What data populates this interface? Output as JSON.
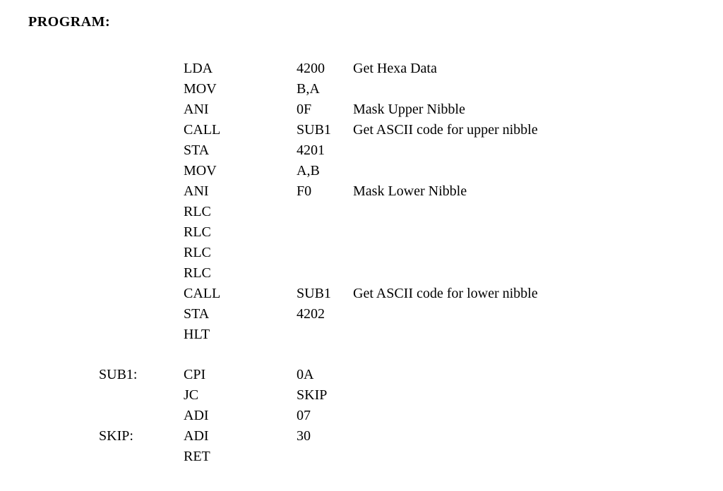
{
  "heading": "PROGRAM:",
  "text_color": "#000000",
  "background_color": "#ffffff",
  "font_family": "Garamond, Georgia, 'Times New Roman', serif",
  "heading_fontsize": 20,
  "body_fontsize": 20,
  "line_height": 1.45,
  "columns": {
    "label_width": 220,
    "opcode_width": 160,
    "operand_width": 80
  },
  "rows": [
    {
      "label": "",
      "opcode": "LDA",
      "operand": "4200",
      "comment": "Get Hexa Data"
    },
    {
      "label": "",
      "opcode": "MOV",
      "operand": "B,A",
      "comment": ""
    },
    {
      "label": "",
      "opcode": "ANI",
      "operand": "0F",
      "comment": "Mask Upper Nibble"
    },
    {
      "label": "",
      "opcode": "CALL",
      "operand": "SUB1",
      "comment": "Get ASCII code for upper nibble"
    },
    {
      "label": "",
      "opcode": "STA",
      "operand": "4201",
      "comment": ""
    },
    {
      "label": "",
      "opcode": "MOV",
      "operand": "A,B",
      "comment": ""
    },
    {
      "label": "",
      "opcode": "ANI",
      "operand": "F0",
      "comment": "Mask Lower Nibble"
    },
    {
      "label": "",
      "opcode": "RLC",
      "operand": "",
      "comment": ""
    },
    {
      "label": "",
      "opcode": "RLC",
      "operand": "",
      "comment": ""
    },
    {
      "label": "",
      "opcode": "RLC",
      "operand": "",
      "comment": ""
    },
    {
      "label": "",
      "opcode": "RLC",
      "operand": "",
      "comment": ""
    },
    {
      "label": "",
      "opcode": "CALL",
      "operand": "SUB1",
      "comment": "Get ASCII code for lower nibble"
    },
    {
      "label": "",
      "opcode": "STA",
      "operand": "4202",
      "comment": ""
    },
    {
      "label": "",
      "opcode": "HLT",
      "operand": "",
      "comment": ""
    },
    {
      "gap": true
    },
    {
      "label": "SUB1:",
      "opcode": "CPI",
      "operand": "0A",
      "comment": ""
    },
    {
      "label": "",
      "opcode": "JC",
      "operand": "SKIP",
      "comment": ""
    },
    {
      "label": "",
      "opcode": "ADI",
      "operand": "07",
      "comment": ""
    },
    {
      "label": "SKIP:",
      "opcode": "ADI",
      "operand": "30",
      "comment": ""
    },
    {
      "label": "",
      "opcode": "RET",
      "operand": "",
      "comment": ""
    }
  ]
}
